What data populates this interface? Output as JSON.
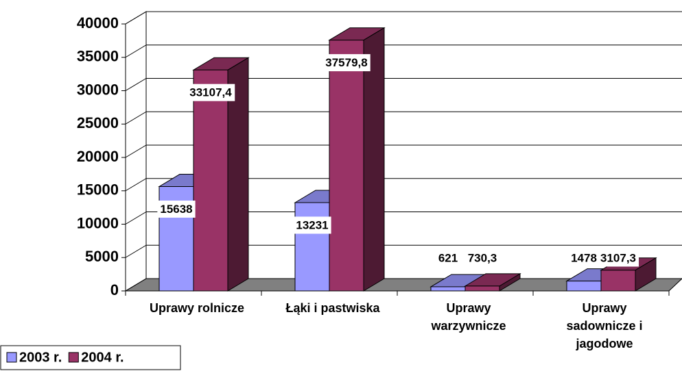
{
  "chart_data": {
    "type": "bar3d",
    "categories": [
      "Uprawy rolnicze",
      "Łąki i pastwiska",
      "Uprawy warzywnicze",
      "Uprawy sadownicze i jagodowe"
    ],
    "series": [
      {
        "name": "2003 r.",
        "color": "#9999ff",
        "values": [
          15638,
          13231,
          621,
          1478
        ]
      },
      {
        "name": "2004 r.",
        "color": "#993366",
        "values": [
          33107.4,
          37579.8,
          730.3,
          3107.3
        ],
        "value_labels": [
          "33107,4",
          "37579,8",
          "730,3",
          "3107,3"
        ]
      }
    ],
    "ylim": [
      0,
      40000
    ],
    "yticks": [
      0,
      5000,
      10000,
      15000,
      20000,
      25000,
      30000,
      35000,
      40000
    ],
    "grid": true,
    "legend": "bottom-left"
  }
}
